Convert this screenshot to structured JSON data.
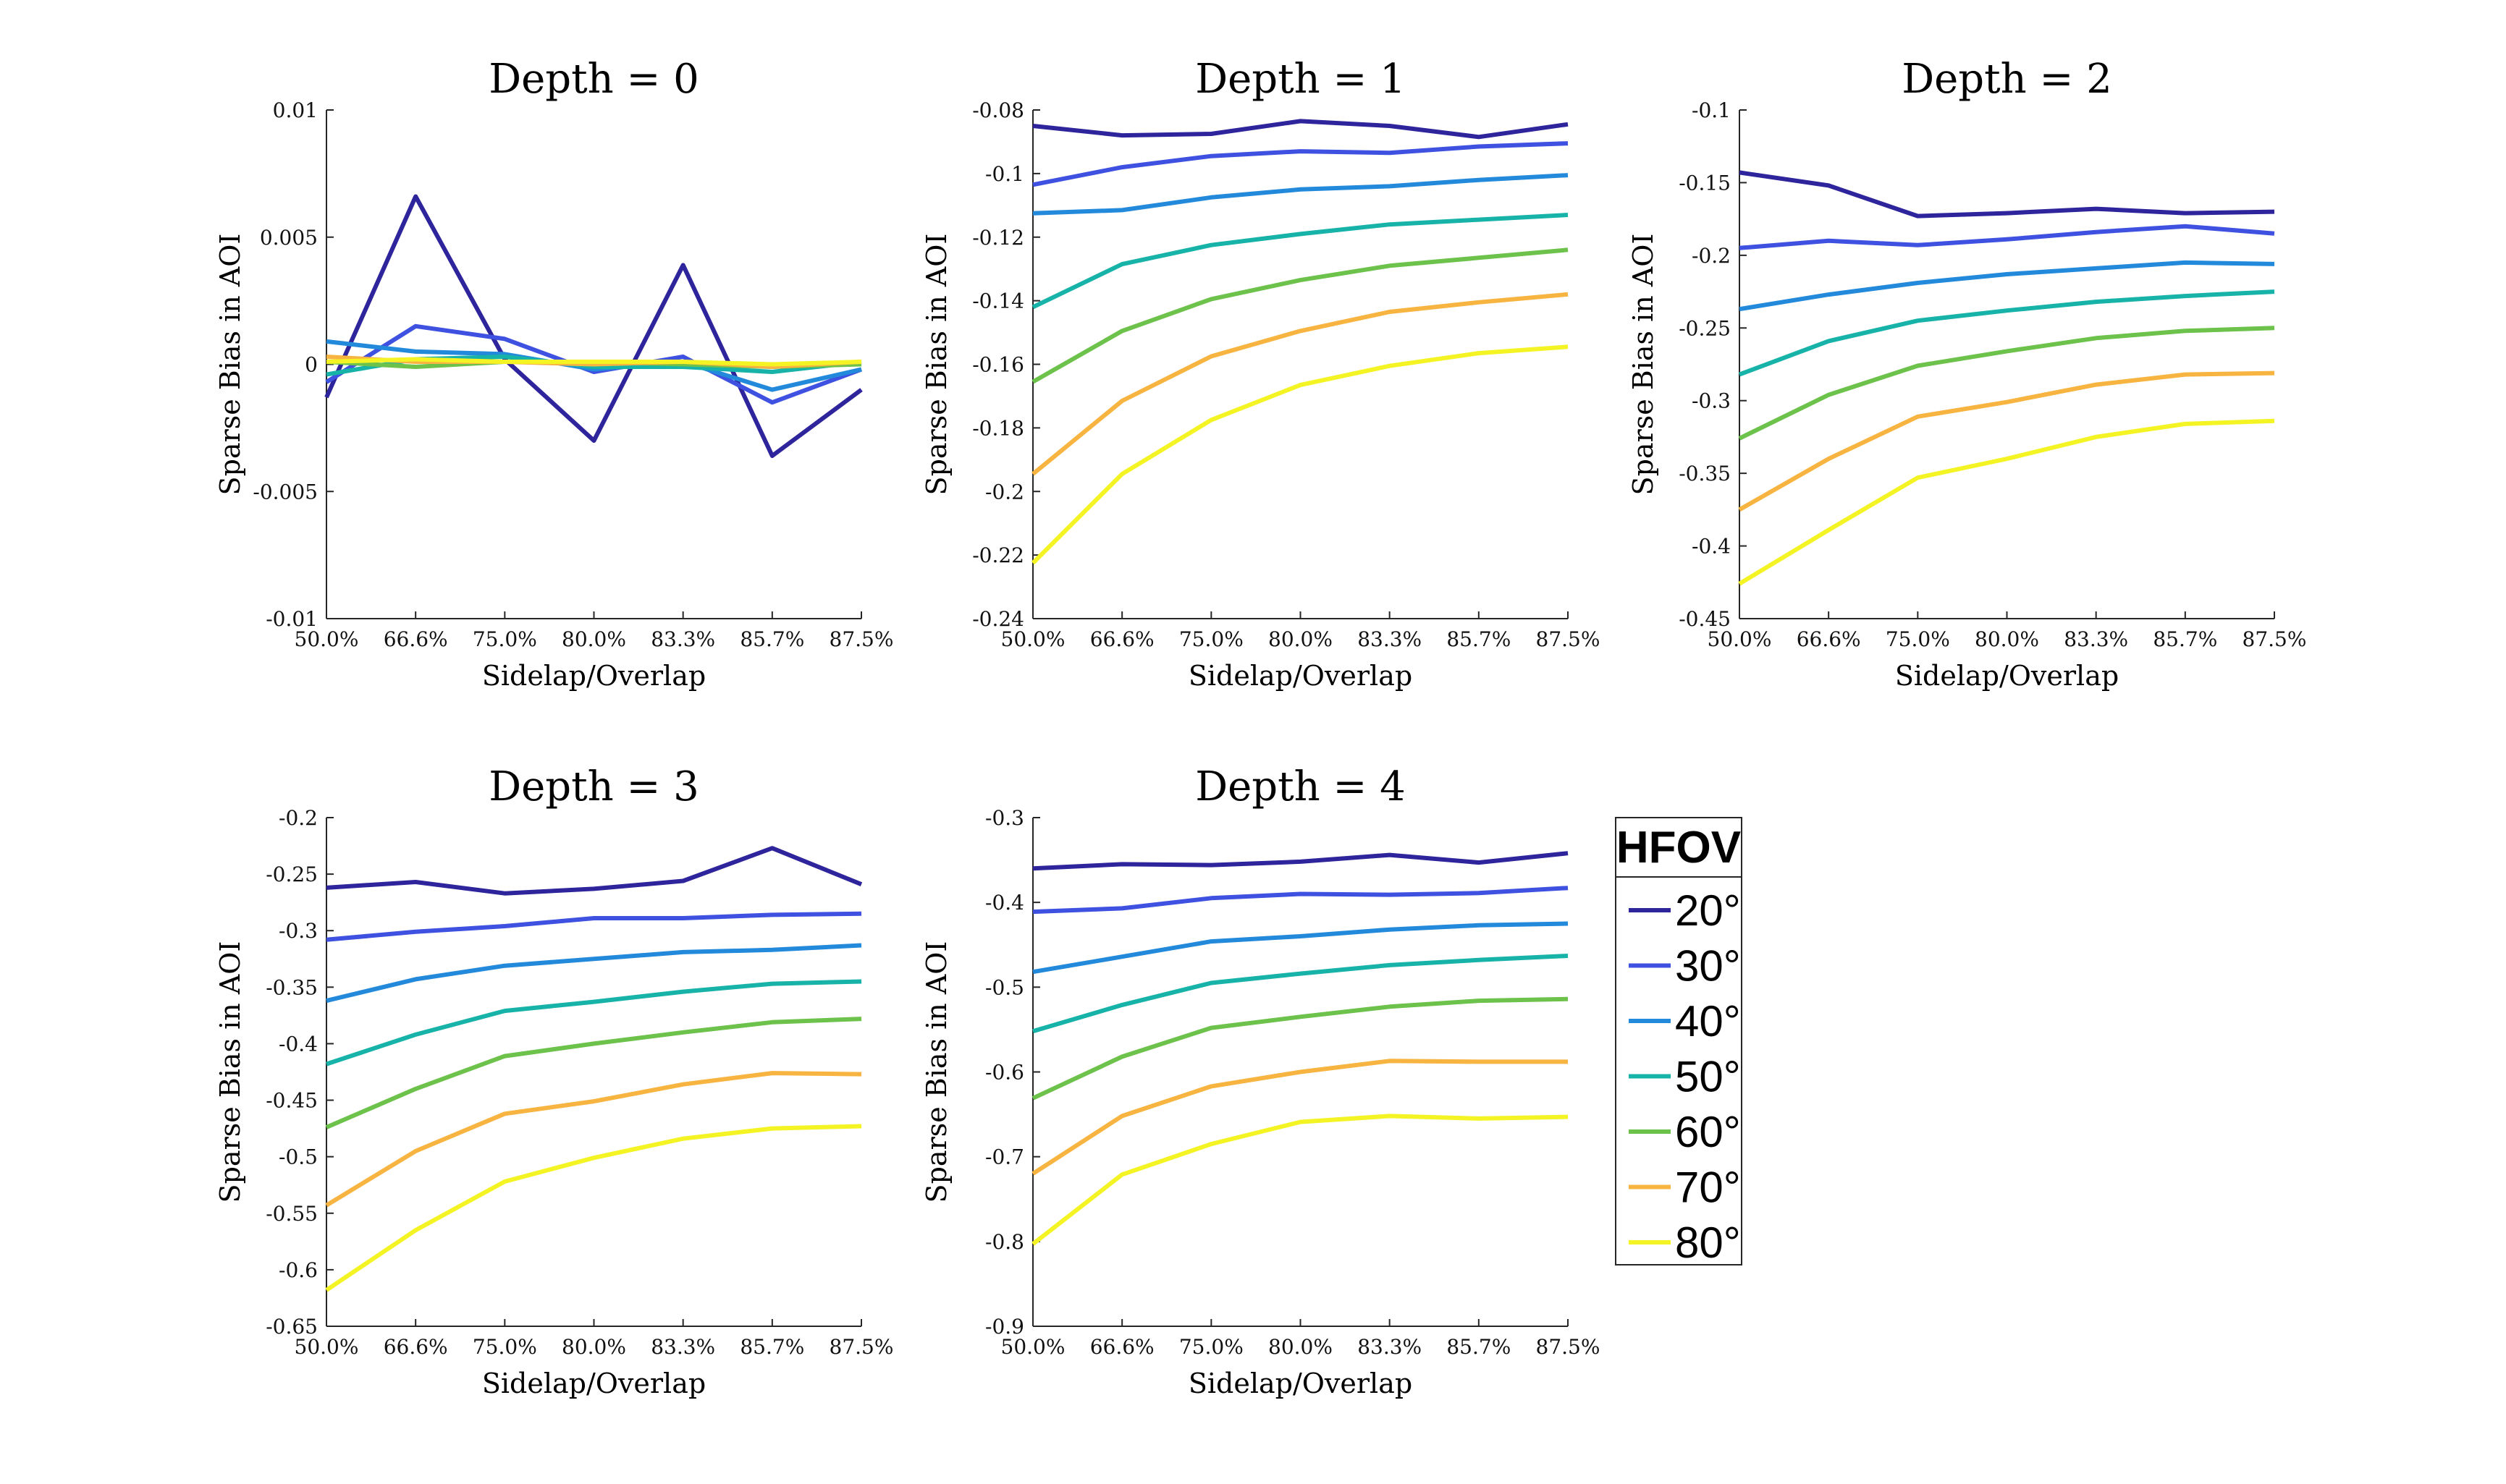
{
  "legend": {
    "title": "HFOV",
    "entries": [
      {
        "label": "20°",
        "color": "#2E249B"
      },
      {
        "label": "30°",
        "color": "#3F51E0"
      },
      {
        "label": "40°",
        "color": "#2389DB"
      },
      {
        "label": "50°",
        "color": "#17B3A9"
      },
      {
        "label": "60°",
        "color": "#6CC24A"
      },
      {
        "label": "70°",
        "color": "#F8B440"
      },
      {
        "label": "80°",
        "color": "#F4F424"
      }
    ]
  },
  "chart_data": [
    {
      "type": "line",
      "title": "Depth = 0",
      "xlabel": "Sidelap/Overlap",
      "ylabel": "Sparse Bias in AOI",
      "categories": [
        "50.0%",
        "66.6%",
        "75.0%",
        "80.0%",
        "83.3%",
        "85.7%",
        "87.5%"
      ],
      "ylim": [
        -0.01,
        0.01
      ],
      "yticks": [
        -0.01,
        -0.005,
        0,
        0.005,
        0.01
      ],
      "ytick_labels": [
        "-0.01",
        "-0.005",
        "0",
        "0.005",
        "0.01"
      ],
      "series": [
        {
          "name": "20°",
          "values": [
            -0.0013,
            0.0066,
            0.0002,
            -0.003,
            0.0039,
            -0.0036,
            -0.001
          ]
        },
        {
          "name": "30°",
          "values": [
            -0.0007,
            0.0015,
            0.001,
            -0.0003,
            0.0003,
            -0.0015,
            -0.0002
          ]
        },
        {
          "name": "40°",
          "values": [
            0.0009,
            0.0005,
            0.0004,
            -0.0002,
            0.0001,
            -0.001,
            -0.0002
          ]
        },
        {
          "name": "50°",
          "values": [
            -0.0004,
            0.0002,
            0.0003,
            -0.0001,
            -0.0001,
            -0.0003,
            0.0001
          ]
        },
        {
          "name": "60°",
          "values": [
            0.0001,
            -0.0001,
            0.0001,
            0.0001,
            0.0,
            -0.0001,
            0.0
          ]
        },
        {
          "name": "70°",
          "values": [
            0.0003,
            0.0001,
            0.0001,
            0.0,
            0.0001,
            -0.0001,
            0.0001
          ]
        },
        {
          "name": "80°",
          "values": [
            0.0001,
            0.0002,
            0.0001,
            0.0001,
            0.0001,
            0.0,
            0.0001
          ]
        }
      ]
    },
    {
      "type": "line",
      "title": "Depth = 1",
      "xlabel": "Sidelap/Overlap",
      "ylabel": "Sparse Bias in AOI",
      "categories": [
        "50.0%",
        "66.6%",
        "75.0%",
        "80.0%",
        "83.3%",
        "85.7%",
        "87.5%"
      ],
      "ylim": [
        -0.24,
        -0.08
      ],
      "yticks": [
        -0.24,
        -0.22,
        -0.2,
        -0.18,
        -0.16,
        -0.14,
        -0.12,
        -0.1,
        -0.08
      ],
      "ytick_labels": [
        "-0.24",
        "-0.22",
        "-0.2",
        "-0.18",
        "-0.16",
        "-0.14",
        "-0.12",
        "-0.1",
        "-0.08"
      ],
      "series": [
        {
          "name": "20°",
          "values": [
            -0.085,
            -0.088,
            -0.0875,
            -0.0835,
            -0.085,
            -0.0885,
            -0.0845
          ]
        },
        {
          "name": "30°",
          "values": [
            -0.1035,
            -0.098,
            -0.0945,
            -0.093,
            -0.0935,
            -0.0915,
            -0.0905
          ]
        },
        {
          "name": "40°",
          "values": [
            -0.1125,
            -0.1115,
            -0.1075,
            -0.105,
            -0.104,
            -0.102,
            -0.1005
          ]
        },
        {
          "name": "50°",
          "values": [
            -0.142,
            -0.1285,
            -0.1225,
            -0.119,
            -0.116,
            -0.1145,
            -0.113
          ]
        },
        {
          "name": "60°",
          "values": [
            -0.1655,
            -0.1495,
            -0.1395,
            -0.1335,
            -0.129,
            -0.1265,
            -0.124
          ]
        },
        {
          "name": "70°",
          "values": [
            -0.1945,
            -0.1715,
            -0.1575,
            -0.1495,
            -0.1435,
            -0.1405,
            -0.138
          ]
        },
        {
          "name": "80°",
          "values": [
            -0.2225,
            -0.1945,
            -0.1775,
            -0.1665,
            -0.1605,
            -0.1565,
            -0.1545
          ]
        }
      ]
    },
    {
      "type": "line",
      "title": "Depth = 2",
      "xlabel": "Sidelap/Overlap",
      "ylabel": "Sparse Bias in AOI",
      "categories": [
        "50.0%",
        "66.6%",
        "75.0%",
        "80.0%",
        "83.3%",
        "85.7%",
        "87.5%"
      ],
      "ylim": [
        -0.45,
        -0.1
      ],
      "yticks": [
        -0.45,
        -0.4,
        -0.35,
        -0.3,
        -0.25,
        -0.2,
        -0.15,
        -0.1
      ],
      "ytick_labels": [
        "-0.45",
        "-0.4",
        "-0.35",
        "-0.3",
        "-0.25",
        "-0.2",
        "-0.15",
        "-0.1"
      ],
      "series": [
        {
          "name": "20°",
          "values": [
            -0.143,
            -0.152,
            -0.173,
            -0.171,
            -0.168,
            -0.171,
            -0.17
          ]
        },
        {
          "name": "30°",
          "values": [
            -0.195,
            -0.19,
            -0.193,
            -0.189,
            -0.184,
            -0.18,
            -0.185
          ]
        },
        {
          "name": "40°",
          "values": [
            -0.237,
            -0.227,
            -0.219,
            -0.213,
            -0.209,
            -0.205,
            -0.206
          ]
        },
        {
          "name": "50°",
          "values": [
            -0.282,
            -0.259,
            -0.245,
            -0.238,
            -0.232,
            -0.228,
            -0.225
          ]
        },
        {
          "name": "60°",
          "values": [
            -0.326,
            -0.296,
            -0.276,
            -0.266,
            -0.257,
            -0.252,
            -0.25
          ]
        },
        {
          "name": "70°",
          "values": [
            -0.375,
            -0.34,
            -0.311,
            -0.301,
            -0.289,
            -0.282,
            -0.281
          ]
        },
        {
          "name": "80°",
          "values": [
            -0.426,
            -0.389,
            -0.353,
            -0.34,
            -0.325,
            -0.316,
            -0.314
          ]
        }
      ]
    },
    {
      "type": "line",
      "title": "Depth = 3",
      "xlabel": "Sidelap/Overlap",
      "ylabel": "Sparse Bias in AOI",
      "categories": [
        "50.0%",
        "66.6%",
        "75.0%",
        "80.0%",
        "83.3%",
        "85.7%",
        "87.5%"
      ],
      "ylim": [
        -0.65,
        -0.2
      ],
      "yticks": [
        -0.65,
        -0.6,
        -0.55,
        -0.5,
        -0.45,
        -0.4,
        -0.35,
        -0.3,
        -0.25,
        -0.2
      ],
      "ytick_labels": [
        "-0.65",
        "-0.6",
        "-0.55",
        "-0.5",
        "-0.45",
        "-0.4",
        "-0.35",
        "-0.3",
        "-0.25",
        "-0.2"
      ],
      "series": [
        {
          "name": "20°",
          "values": [
            -0.262,
            -0.257,
            -0.267,
            -0.263,
            -0.256,
            -0.227,
            -0.259
          ]
        },
        {
          "name": "30°",
          "values": [
            -0.308,
            -0.301,
            -0.296,
            -0.289,
            -0.289,
            -0.286,
            -0.285
          ]
        },
        {
          "name": "40°",
          "values": [
            -0.362,
            -0.343,
            -0.331,
            -0.325,
            -0.319,
            -0.317,
            -0.313
          ]
        },
        {
          "name": "50°",
          "values": [
            -0.418,
            -0.392,
            -0.371,
            -0.363,
            -0.354,
            -0.347,
            -0.345
          ]
        },
        {
          "name": "60°",
          "values": [
            -0.474,
            -0.44,
            -0.411,
            -0.4,
            -0.39,
            -0.381,
            -0.378
          ]
        },
        {
          "name": "70°",
          "values": [
            -0.543,
            -0.495,
            -0.462,
            -0.451,
            -0.436,
            -0.426,
            -0.427
          ]
        },
        {
          "name": "80°",
          "values": [
            -0.618,
            -0.565,
            -0.522,
            -0.501,
            -0.484,
            -0.475,
            -0.473
          ]
        }
      ]
    },
    {
      "type": "line",
      "title": "Depth = 4",
      "xlabel": "Sidelap/Overlap",
      "ylabel": "Sparse Bias in AOI",
      "categories": [
        "50.0%",
        "66.6%",
        "75.0%",
        "80.0%",
        "83.3%",
        "85.7%",
        "87.5%"
      ],
      "ylim": [
        -0.9,
        -0.3
      ],
      "yticks": [
        -0.9,
        -0.8,
        -0.7,
        -0.6,
        -0.5,
        -0.4,
        -0.3
      ],
      "ytick_labels": [
        "-0.9",
        "-0.8",
        "-0.7",
        "-0.6",
        "-0.5",
        "-0.4",
        "-0.3"
      ],
      "series": [
        {
          "name": "20°",
          "values": [
            -0.36,
            -0.355,
            -0.356,
            -0.352,
            -0.344,
            -0.353,
            -0.342
          ]
        },
        {
          "name": "30°",
          "values": [
            -0.411,
            -0.407,
            -0.395,
            -0.39,
            -0.391,
            -0.389,
            -0.383
          ]
        },
        {
          "name": "40°",
          "values": [
            -0.482,
            -0.464,
            -0.446,
            -0.44,
            -0.432,
            -0.427,
            -0.425
          ]
        },
        {
          "name": "50°",
          "values": [
            -0.552,
            -0.521,
            -0.495,
            -0.484,
            -0.474,
            -0.468,
            -0.463
          ]
        },
        {
          "name": "60°",
          "values": [
            -0.631,
            -0.582,
            -0.548,
            -0.535,
            -0.523,
            -0.516,
            -0.514
          ]
        },
        {
          "name": "70°",
          "values": [
            -0.72,
            -0.652,
            -0.617,
            -0.6,
            -0.587,
            -0.588,
            -0.588
          ]
        },
        {
          "name": "80°",
          "values": [
            -0.803,
            -0.721,
            -0.685,
            -0.659,
            -0.652,
            -0.655,
            -0.653
          ]
        }
      ]
    }
  ]
}
